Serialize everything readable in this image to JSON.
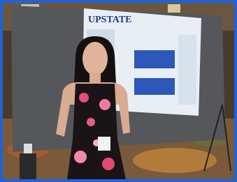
{
  "poster": {
    "logo": "UPSTATE"
  }
}
